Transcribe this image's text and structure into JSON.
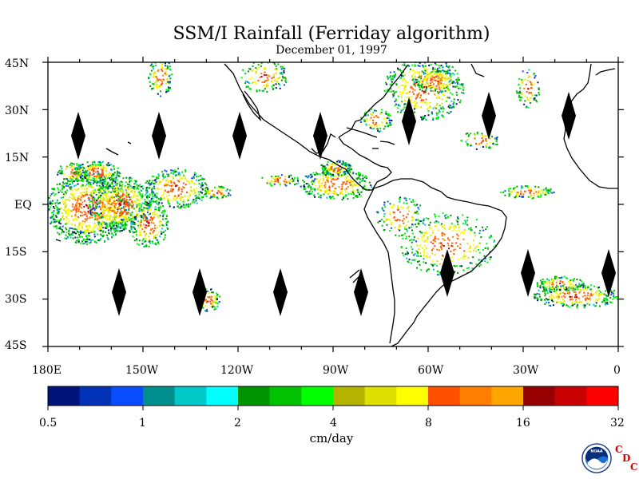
{
  "title": "SSM/I Rainfall (Ferriday algorithm)",
  "subtitle": "December 01, 1997",
  "latitude_labels": [
    "45N",
    "30N",
    "15N",
    "EQ",
    "15S",
    "30S",
    "45S"
  ],
  "longitude_labels": [
    "180E",
    "150W",
    "120W",
    "90W",
    "60W",
    "30W",
    "0"
  ],
  "colorbar": {
    "labels": [
      "0.5",
      "1",
      "2",
      "4",
      "8",
      "16",
      "32"
    ],
    "units": "cm/day",
    "colors": [
      "#00137a",
      "#0033b8",
      "#0a4dff",
      "#008f8f",
      "#00c8c8",
      "#00ffff",
      "#009400",
      "#00c200",
      "#00ff00",
      "#b3b300",
      "#e0e000",
      "#ffff00",
      "#ff5000",
      "#ff7e00",
      "#ffa500",
      "#960000",
      "#c80000",
      "#ff0000"
    ]
  },
  "logo": {
    "icon": "noaa-logo",
    "text": "NOAA",
    "letters": [
      "C",
      "D",
      "C"
    ]
  }
}
